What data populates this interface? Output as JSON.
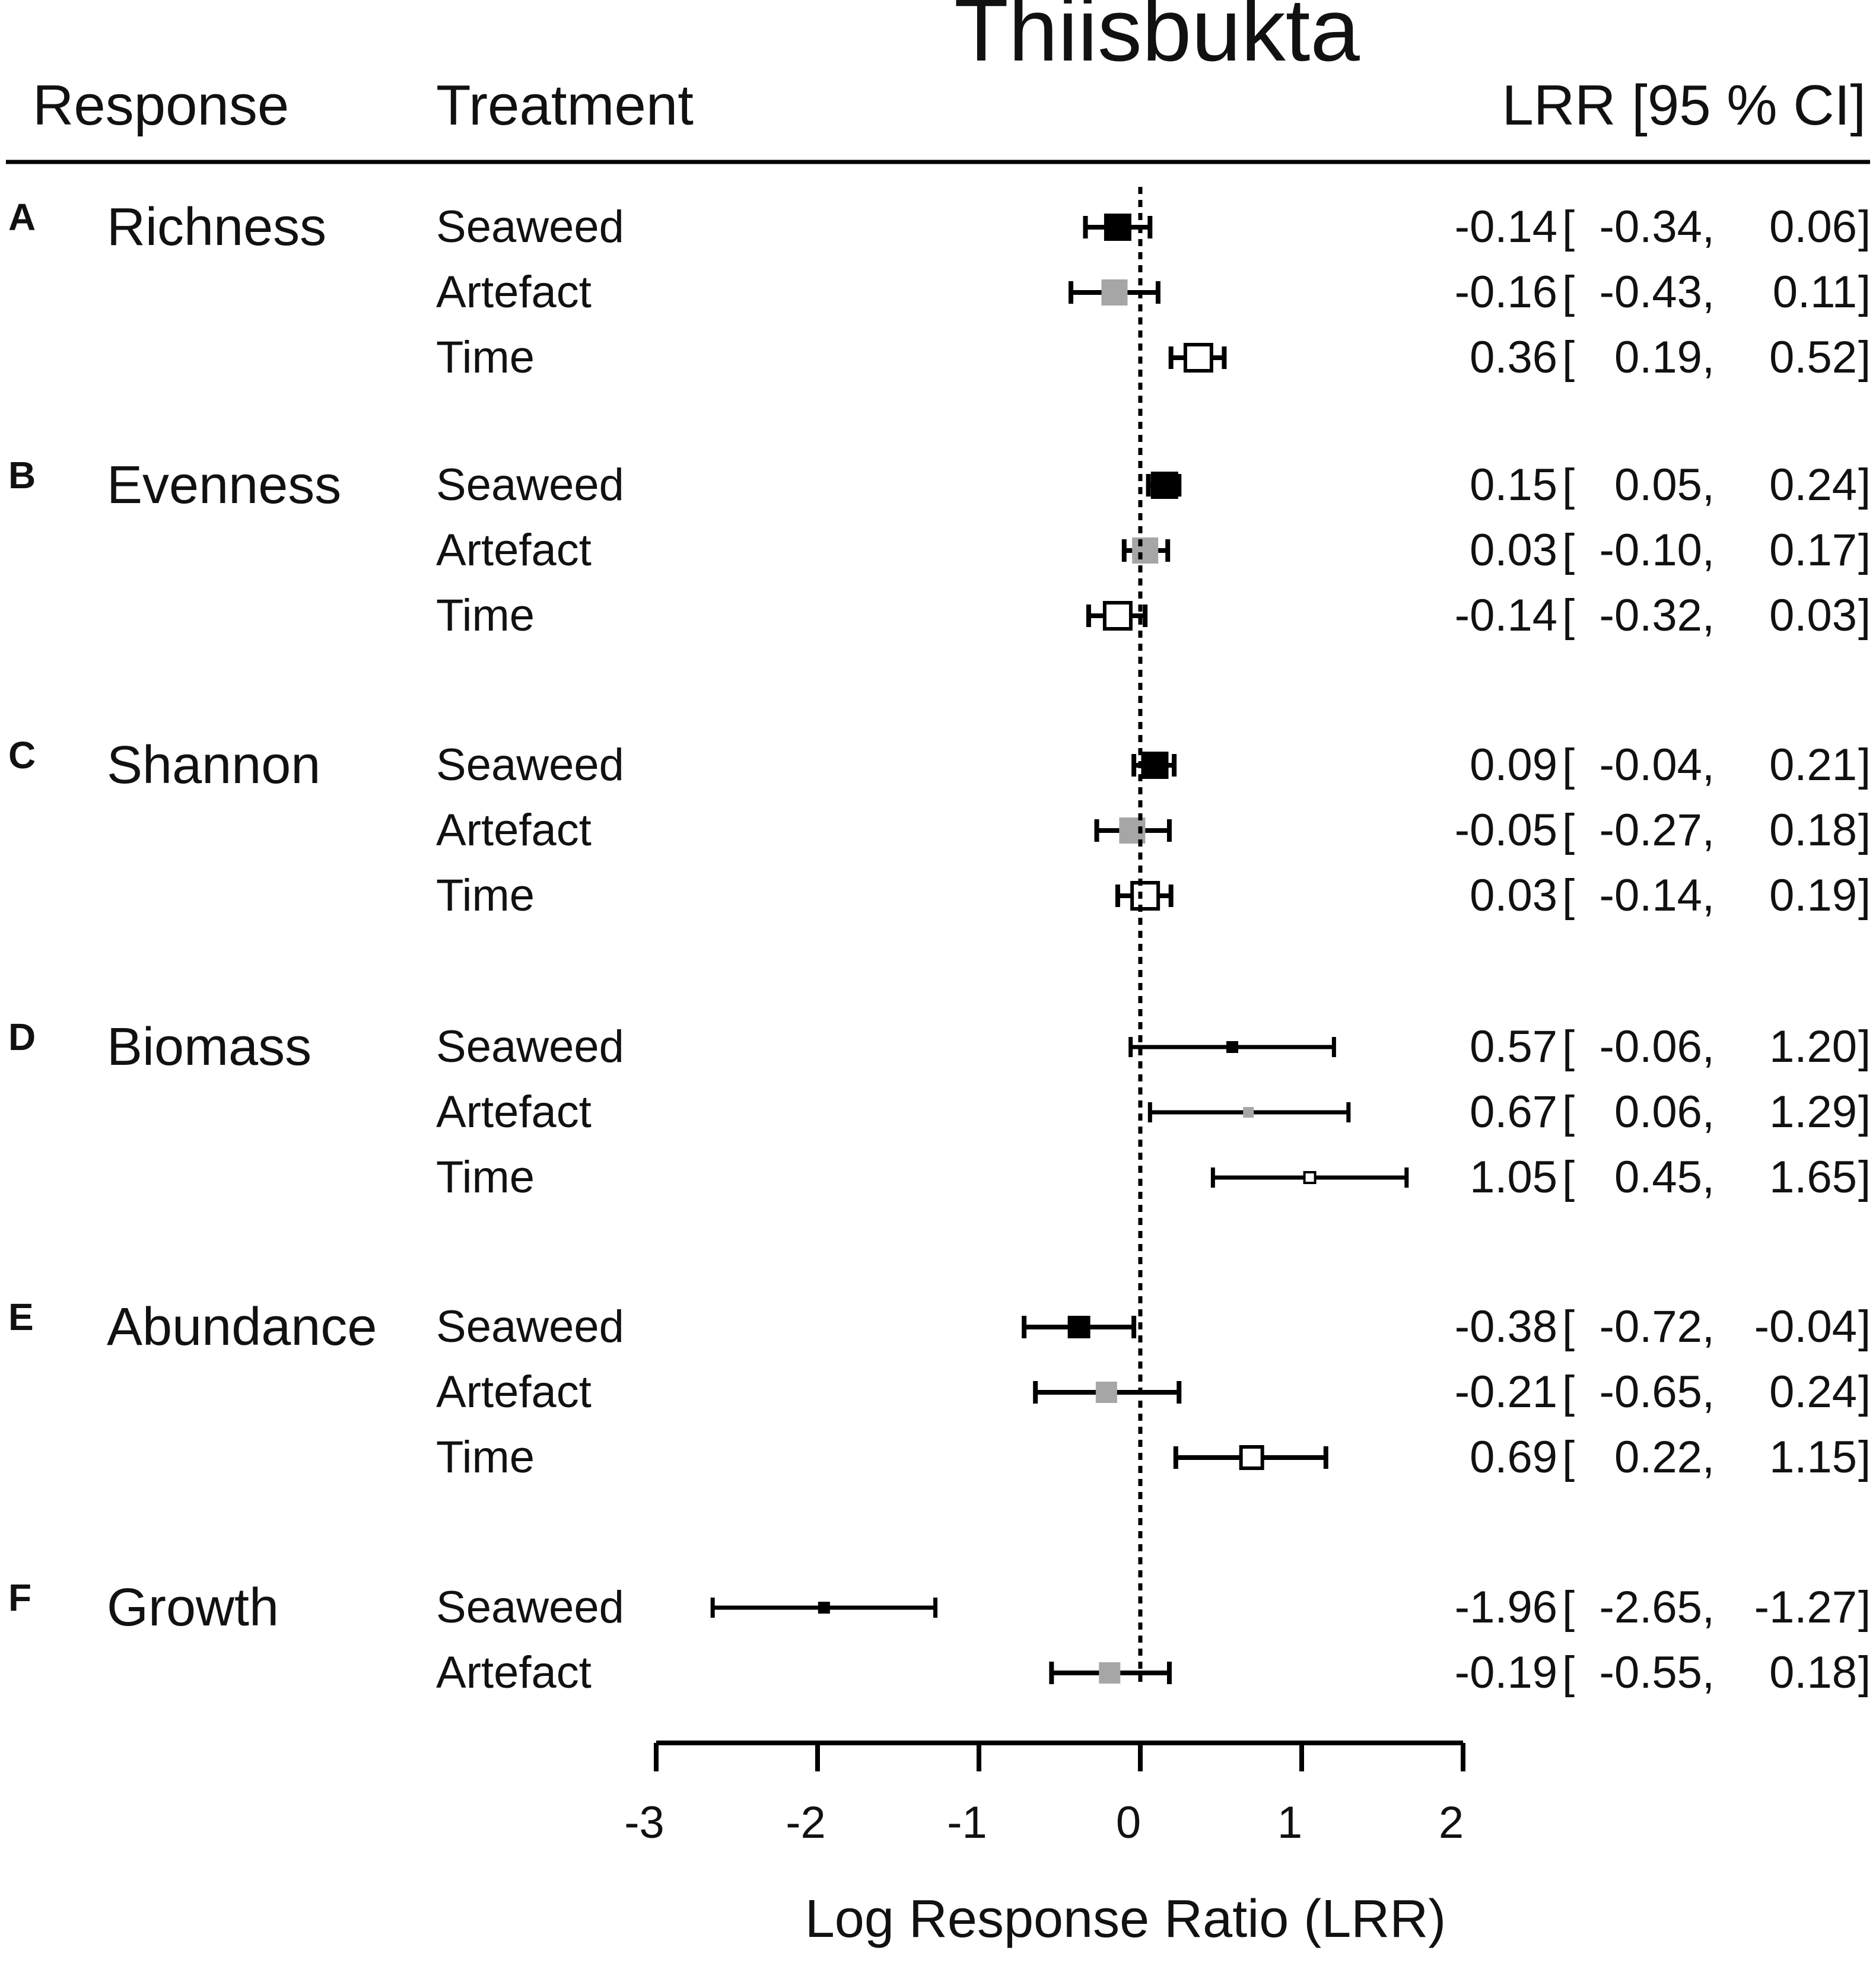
{
  "chart_data": {
    "type": "forest",
    "title": "Thiisbukta",
    "headers": {
      "response": "Response",
      "treatment": "Treatment",
      "lrr_ci": "LRR [95 % CI]"
    },
    "xlabel": "Log Response Ratio (LRR)",
    "xlim": [
      -3,
      2
    ],
    "xticks": [
      -3,
      -2,
      -1,
      0,
      1,
      2
    ],
    "reference_line": 0,
    "treatment_colors": {
      "Seaweed": "#000000",
      "Artefact": "#a6a6a6",
      "Time": "#ffffff"
    },
    "groups": [
      {
        "letter": "A",
        "response": "Richness",
        "rows": [
          {
            "treatment": "Seaweed",
            "lrr": -0.14,
            "lo": -0.34,
            "hi": 0.06,
            "marker": "large"
          },
          {
            "treatment": "Artefact",
            "lrr": -0.16,
            "lo": -0.43,
            "hi": 0.11,
            "marker": "large"
          },
          {
            "treatment": "Time",
            "lrr": 0.36,
            "lo": 0.19,
            "hi": 0.52,
            "marker": "large"
          }
        ]
      },
      {
        "letter": "B",
        "response": "Evenness",
        "rows": [
          {
            "treatment": "Seaweed",
            "lrr": 0.15,
            "lo": 0.05,
            "hi": 0.24,
            "marker": "large"
          },
          {
            "treatment": "Artefact",
            "lrr": 0.03,
            "lo": -0.1,
            "hi": 0.17,
            "marker": "large"
          },
          {
            "treatment": "Time",
            "lrr": -0.14,
            "lo": -0.32,
            "hi": 0.03,
            "marker": "large"
          }
        ]
      },
      {
        "letter": "C",
        "response": "Shannon",
        "rows": [
          {
            "treatment": "Seaweed",
            "lrr": 0.09,
            "lo": -0.04,
            "hi": 0.21,
            "marker": "large"
          },
          {
            "treatment": "Artefact",
            "lrr": -0.05,
            "lo": -0.27,
            "hi": 0.18,
            "marker": "large"
          },
          {
            "treatment": "Time",
            "lrr": 0.03,
            "lo": -0.14,
            "hi": 0.19,
            "marker": "large"
          }
        ]
      },
      {
        "letter": "D",
        "response": "Biomass",
        "rows": [
          {
            "treatment": "Seaweed",
            "lrr": 0.57,
            "lo": -0.06,
            "hi": 1.2,
            "marker": "small"
          },
          {
            "treatment": "Artefact",
            "lrr": 0.67,
            "lo": 0.06,
            "hi": 1.29,
            "marker": "small"
          },
          {
            "treatment": "Time",
            "lrr": 1.05,
            "lo": 0.45,
            "hi": 1.65,
            "marker": "small"
          }
        ]
      },
      {
        "letter": "E",
        "response": "Abundance",
        "rows": [
          {
            "treatment": "Seaweed",
            "lrr": -0.38,
            "lo": -0.72,
            "hi": -0.04,
            "marker": "medium"
          },
          {
            "treatment": "Artefact",
            "lrr": -0.21,
            "lo": -0.65,
            "hi": 0.24,
            "marker": "medium"
          },
          {
            "treatment": "Time",
            "lrr": 0.69,
            "lo": 0.22,
            "hi": 1.15,
            "marker": "medium"
          }
        ]
      },
      {
        "letter": "F",
        "response": "Growth",
        "rows": [
          {
            "treatment": "Seaweed",
            "lrr": -1.96,
            "lo": -2.65,
            "hi": -1.27,
            "marker": "small"
          },
          {
            "treatment": "Artefact",
            "lrr": -0.19,
            "lo": -0.55,
            "hi": 0.18,
            "marker": "medium"
          }
        ]
      }
    ],
    "display": {
      "A": [
        [
          "-0.14",
          "-0.34",
          "0.06"
        ],
        [
          "-0.16",
          "-0.43",
          "0.11"
        ],
        [
          "0.36",
          "0.19",
          "0.52"
        ]
      ],
      "B": [
        [
          "0.15",
          "0.05",
          "0.24"
        ],
        [
          "0.03",
          "-0.10",
          "0.17"
        ],
        [
          "-0.14",
          "-0.32",
          "0.03"
        ]
      ],
      "C": [
        [
          "0.09",
          "-0.04",
          "0.21"
        ],
        [
          "-0.05",
          "-0.27",
          "0.18"
        ],
        [
          "0.03",
          "-0.14",
          "0.19"
        ]
      ],
      "D": [
        [
          "0.57",
          "-0.06",
          "1.20"
        ],
        [
          "0.67",
          "0.06",
          "1.29"
        ],
        [
          "1.05",
          "0.45",
          "1.65"
        ]
      ],
      "E": [
        [
          "-0.38",
          "-0.72",
          "-0.04"
        ],
        [
          "-0.21",
          "-0.65",
          "0.24"
        ],
        [
          "0.69",
          "0.22",
          "1.15"
        ]
      ],
      "F": [
        [
          "-1.96",
          "-2.65",
          "-1.27"
        ],
        [
          "-0.19",
          "-0.55",
          "0.18"
        ]
      ]
    }
  }
}
